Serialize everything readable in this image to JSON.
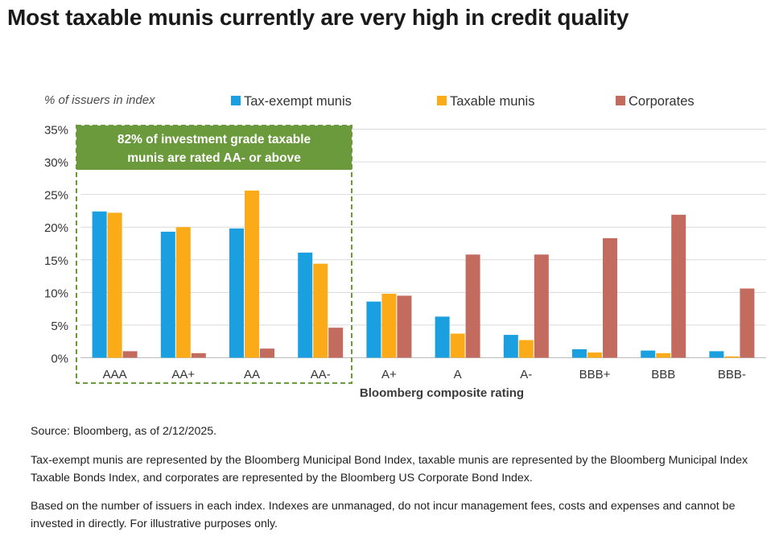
{
  "page": {
    "title": "Most taxable munis currently are very high in credit quality",
    "source_note": "Source: Bloomberg, as of 2/12/2025.",
    "index_note": "Tax-exempt munis are represented by the Bloomberg Municipal Bond Index, taxable munis are represented by the Bloomberg Municipal Index Taxable Bonds Index, and corporates are represented by the Bloomberg US Corporate Bond Index.",
    "disclaimer_note": "Based on the number of issuers in each index. Indexes are unmanaged, do not incur management fees, costs and expenses and cannot be invested in directly. For illustrative purposes only."
  },
  "chart_data": {
    "type": "bar",
    "ylabel": "% of issuers in index",
    "xlabel": "Bloomberg composite rating",
    "categories": [
      "AAA",
      "AA+",
      "AA",
      "AA-",
      "A+",
      "A",
      "A-",
      "BBB+",
      "BBB",
      "BBB-"
    ],
    "ylim": [
      0,
      35
    ],
    "yticks": [
      "0%",
      "5%",
      "10%",
      "15%",
      "20%",
      "25%",
      "30%",
      "35%"
    ],
    "grid": true,
    "legend_position": "top",
    "series": [
      {
        "name": "Tax-exempt munis",
        "color": "#1a9fe0",
        "values": [
          22.4,
          19.3,
          19.8,
          16.1,
          8.6,
          6.3,
          3.5,
          1.3,
          1.1,
          1.0
        ]
      },
      {
        "name": "Taxable munis",
        "color": "#fbab18",
        "values": [
          22.2,
          20.0,
          25.6,
          14.4,
          9.8,
          3.7,
          2.7,
          0.8,
          0.7,
          0.2
        ]
      },
      {
        "name": "Corporates",
        "color": "#c36b5e",
        "values": [
          1.0,
          0.7,
          1.4,
          4.6,
          9.5,
          15.8,
          15.8,
          18.3,
          21.9,
          10.6
        ]
      }
    ],
    "annotation": {
      "line1": "82% of investment grade taxable",
      "line2": "munis are rated AA- or above",
      "box_color": "#6a9a3c",
      "spans_categories": [
        "AAA",
        "AA+",
        "AA",
        "AA-"
      ]
    }
  }
}
